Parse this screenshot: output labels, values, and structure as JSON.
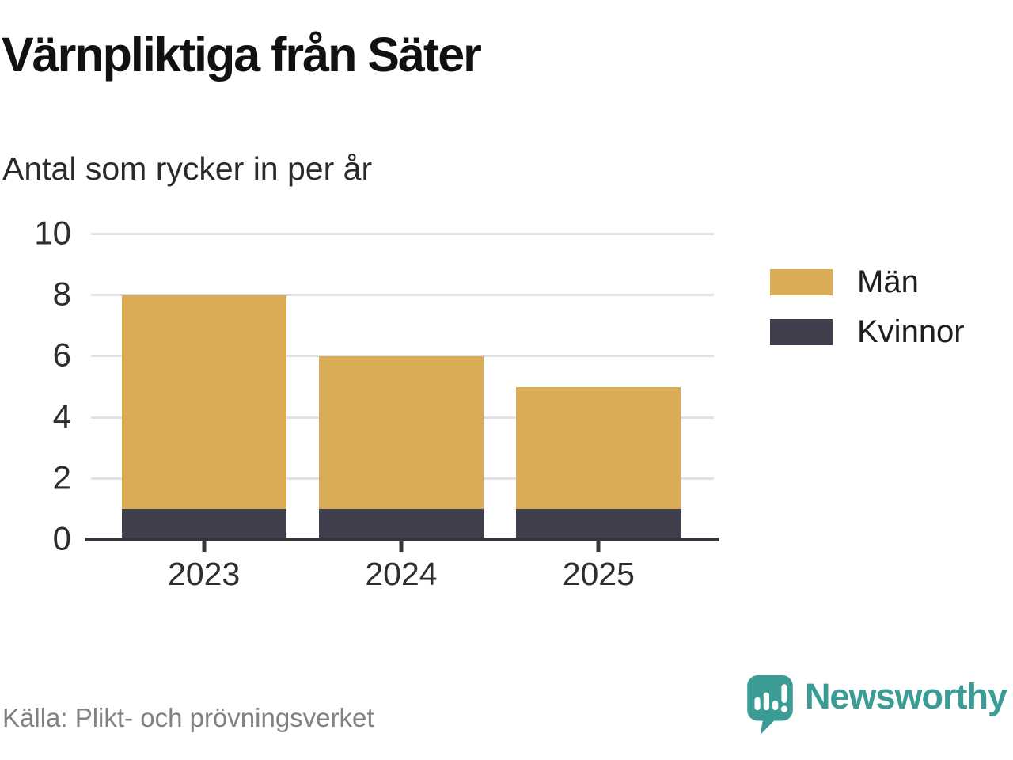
{
  "chart_data": {
    "type": "bar",
    "stacked": true,
    "title": "Värnpliktiga från Säter",
    "subtitle": "Antal som rycker in per år",
    "source": "Källa: Plikt- och prövningsverket",
    "categories": [
      "2023",
      "2024",
      "2025"
    ],
    "series": [
      {
        "name": "Män",
        "color": "#D9AB55",
        "values": [
          7,
          5,
          4
        ]
      },
      {
        "name": "Kvinnor",
        "color": "#3F3F4D",
        "values": [
          1,
          1,
          1
        ]
      }
    ],
    "stack_bottom_to_top": [
      "Kvinnor",
      "Män"
    ],
    "totals": [
      8,
      6,
      5
    ],
    "ylim": [
      0,
      10
    ],
    "yticks": [
      0,
      2,
      4,
      6,
      8,
      10
    ],
    "grid": true,
    "legend_position": "right"
  },
  "footer": {
    "brand": "Newsworthy",
    "brand_color": "#3A9C94"
  },
  "colors": {
    "background": "#FFFFFF",
    "grid": "#E1E1E1",
    "axis": "#35353E",
    "men": "#D9AB55",
    "women": "#3F3F4D",
    "muted_text": "#818181"
  }
}
